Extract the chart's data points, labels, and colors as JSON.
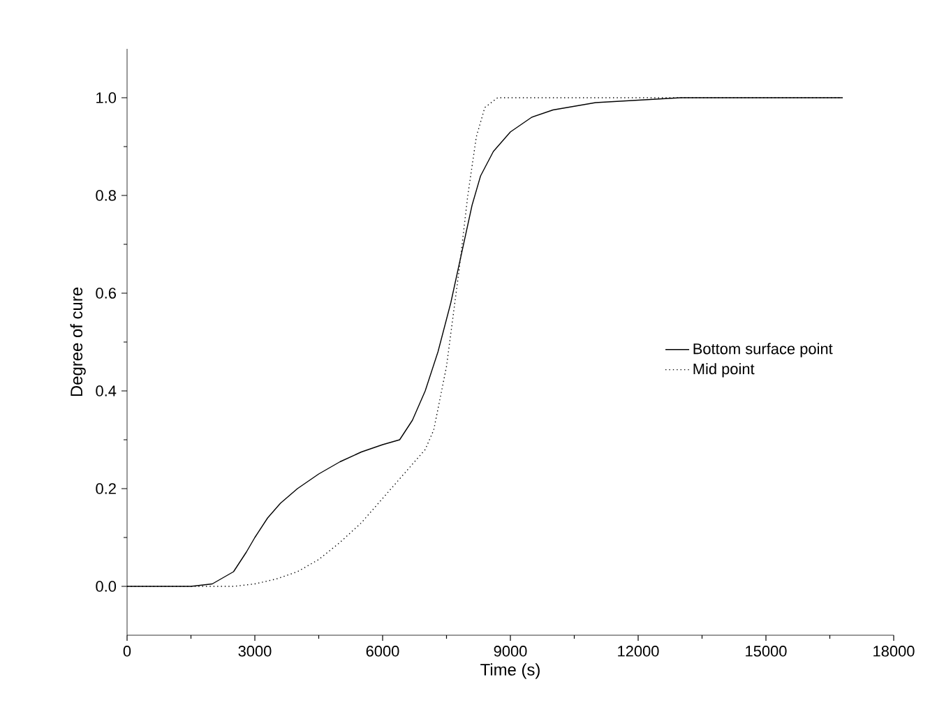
{
  "chart_data": {
    "type": "line",
    "xlabel": "Time (s)",
    "ylabel": "Degree of cure",
    "xlim": [
      0,
      18000
    ],
    "ylim": [
      -0.1,
      1.1
    ],
    "xticks": [
      0,
      3000,
      6000,
      9000,
      12000,
      15000,
      18000
    ],
    "yticks": [
      {
        "value": 0,
        "label": "0.0"
      },
      {
        "value": 0.2,
        "label": "0.2"
      },
      {
        "value": 0.4,
        "label": "0.4"
      },
      {
        "value": 0.6,
        "label": "0.6"
      },
      {
        "value": 0.8,
        "label": "0.8"
      },
      {
        "value": 1,
        "label": "1.0"
      }
    ],
    "legend": "right",
    "marker": "none",
    "series": [
      {
        "name": "Bottom surface point",
        "color": "#000000",
        "line_style": "solid",
        "x": [
          0,
          1500,
          2000,
          2500,
          2800,
          3000,
          3300,
          3600,
          4000,
          4500,
          5000,
          5500,
          6000,
          6400,
          6700,
          7000,
          7300,
          7600,
          7900,
          8100,
          8300,
          8600,
          9000,
          9500,
          10000,
          11000,
          12000,
          13000,
          16800
        ],
        "values": [
          0,
          0,
          0.005,
          0.03,
          0.07,
          0.1,
          0.14,
          0.17,
          0.2,
          0.23,
          0.255,
          0.275,
          0.29,
          0.3,
          0.34,
          0.4,
          0.48,
          0.58,
          0.7,
          0.78,
          0.84,
          0.89,
          0.93,
          0.96,
          0.975,
          0.99,
          0.995,
          1.0,
          1.0
        ]
      },
      {
        "name": "Mid point",
        "color": "#000000",
        "line_style": "dotted",
        "x": [
          0,
          2500,
          3000,
          3500,
          4000,
          4500,
          5000,
          5500,
          6000,
          6500,
          7000,
          7200,
          7500,
          7800,
          8000,
          8200,
          8400,
          8700,
          16800
        ],
        "values": [
          0,
          0,
          0.005,
          0.015,
          0.03,
          0.055,
          0.09,
          0.13,
          0.18,
          0.23,
          0.28,
          0.32,
          0.45,
          0.65,
          0.8,
          0.92,
          0.98,
          1.0,
          1.0
        ]
      }
    ]
  }
}
